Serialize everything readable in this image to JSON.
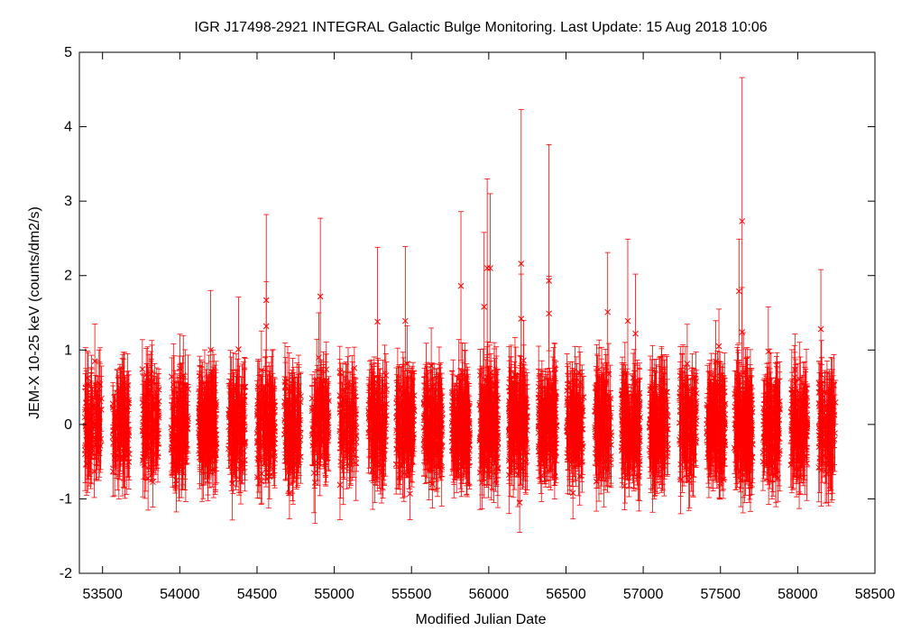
{
  "chart_data": {
    "type": "scatter",
    "title": "IGR J17498-2921   INTEGRAL Galactic Bulge Monitoring.  Last Update: 15 Aug 2018 10:06",
    "xlabel": "Modified Julian Date",
    "ylabel": "JEM-X 10-25 keV (counts/dm2/s)",
    "xlim": [
      53350,
      58500
    ],
    "ylim": [
      -2,
      5
    ],
    "xticks": [
      53500,
      54000,
      54500,
      55000,
      55500,
      56000,
      56500,
      57000,
      57500,
      58000,
      58500
    ],
    "yticks": [
      -2,
      -1,
      0,
      1,
      2,
      3,
      4,
      5
    ],
    "grid": false,
    "marker": "x",
    "errorbars": true,
    "color": "#ff0000",
    "seasons": [
      {
        "center": 53440,
        "width": 110,
        "count": 90
      },
      {
        "center": 53620,
        "width": 110,
        "count": 90
      },
      {
        "center": 53810,
        "width": 110,
        "count": 100
      },
      {
        "center": 54000,
        "width": 110,
        "count": 110
      },
      {
        "center": 54180,
        "width": 120,
        "count": 150
      },
      {
        "center": 54370,
        "width": 110,
        "count": 100
      },
      {
        "center": 54560,
        "width": 120,
        "count": 120
      },
      {
        "center": 54730,
        "width": 110,
        "count": 110
      },
      {
        "center": 54910,
        "width": 110,
        "count": 100
      },
      {
        "center": 55090,
        "width": 110,
        "count": 90
      },
      {
        "center": 55280,
        "width": 120,
        "count": 120
      },
      {
        "center": 55460,
        "width": 120,
        "count": 130
      },
      {
        "center": 55640,
        "width": 120,
        "count": 150
      },
      {
        "center": 55820,
        "width": 120,
        "count": 160
      },
      {
        "center": 56000,
        "width": 120,
        "count": 170
      },
      {
        "center": 56190,
        "width": 120,
        "count": 160
      },
      {
        "center": 56380,
        "width": 120,
        "count": 140
      },
      {
        "center": 56560,
        "width": 110,
        "count": 110
      },
      {
        "center": 56740,
        "width": 110,
        "count": 110
      },
      {
        "center": 56920,
        "width": 120,
        "count": 150
      },
      {
        "center": 57100,
        "width": 120,
        "count": 140
      },
      {
        "center": 57290,
        "width": 110,
        "count": 120
      },
      {
        "center": 57470,
        "width": 120,
        "count": 150
      },
      {
        "center": 57650,
        "width": 120,
        "count": 160
      },
      {
        "center": 57830,
        "width": 110,
        "count": 120
      },
      {
        "center": 58010,
        "width": 110,
        "count": 110
      },
      {
        "center": 58190,
        "width": 110,
        "count": 100
      }
    ],
    "outliers": [
      {
        "x": 54560,
        "y": 1.67,
        "err": 1.15
      },
      {
        "x": 54560,
        "y": 1.32,
        "err": 0.6
      },
      {
        "x": 54910,
        "y": 1.72,
        "err": 1.05
      },
      {
        "x": 55280,
        "y": 1.38,
        "err": 1.0
      },
      {
        "x": 55460,
        "y": 1.39,
        "err": 1.0
      },
      {
        "x": 55820,
        "y": 1.86,
        "err": 1.0
      },
      {
        "x": 55990,
        "y": 2.1,
        "err": 1.2
      },
      {
        "x": 56010,
        "y": 2.1,
        "err": 1.0
      },
      {
        "x": 55970,
        "y": 1.58,
        "err": 1.0
      },
      {
        "x": 56210,
        "y": 2.16,
        "err": 2.07
      },
      {
        "x": 56210,
        "y": 1.42,
        "err": 0.6
      },
      {
        "x": 56390,
        "y": 1.93,
        "err": 1.83
      },
      {
        "x": 56390,
        "y": 1.49,
        "err": 0.5
      },
      {
        "x": 56770,
        "y": 1.51,
        "err": 0.8
      },
      {
        "x": 56900,
        "y": 1.39,
        "err": 1.1
      },
      {
        "x": 56950,
        "y": 1.22,
        "err": 0.8
      },
      {
        "x": 57620,
        "y": 1.79,
        "err": 0.7
      },
      {
        "x": 57640,
        "y": 2.73,
        "err": 1.93
      },
      {
        "x": 57640,
        "y": 1.24,
        "err": 0.6
      },
      {
        "x": 58150,
        "y": 1.28,
        "err": 0.8
      },
      {
        "x": 54200,
        "y": 1.0,
        "err": 0.8
      },
      {
        "x": 54380,
        "y": 1.01,
        "err": 0.7
      },
      {
        "x": 53450,
        "y": 0.85,
        "err": 0.5
      },
      {
        "x": 54900,
        "y": 0.9,
        "err": 0.6
      },
      {
        "x": 56200,
        "y": -1.05,
        "err": 0.4
      },
      {
        "x": 54710,
        "y": -0.92,
        "err": 0.35
      },
      {
        "x": 55490,
        "y": -0.93,
        "err": 0.35
      },
      {
        "x": 56545,
        "y": -0.92,
        "err": 0.35
      },
      {
        "x": 57810,
        "y": 0.98,
        "err": 0.6
      },
      {
        "x": 57490,
        "y": 1.05,
        "err": 0.5
      }
    ]
  }
}
